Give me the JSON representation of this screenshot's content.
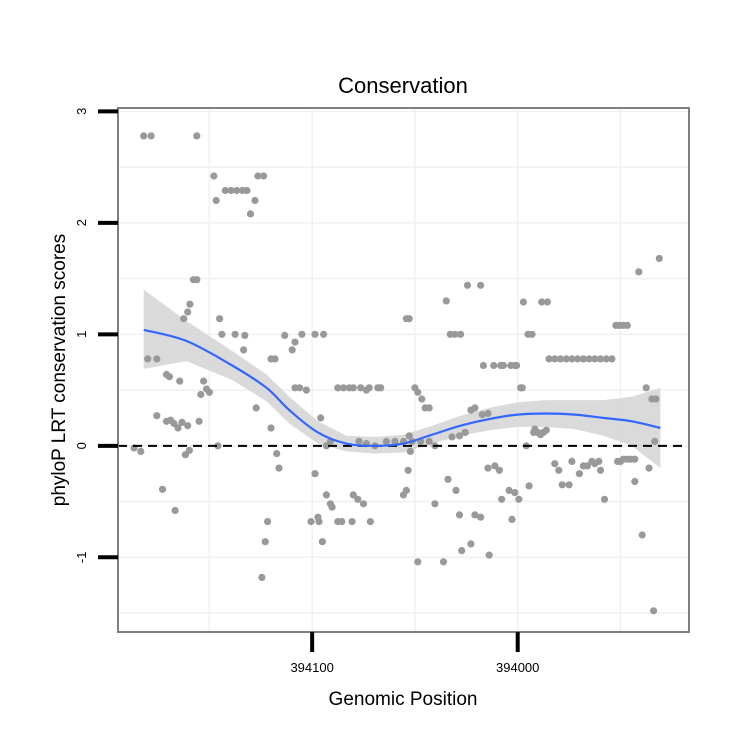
{
  "chart_data": {
    "type": "scatter",
    "title": "Conservation",
    "xlabel": "Genomic Position",
    "ylabel": "phyloP LRT conservation scores",
    "x_ticks": [
      {
        "label": "394100",
        "frac": 0.34
      },
      {
        "label": "394000",
        "frac": 0.7
      }
    ],
    "y_ticks": [
      -1,
      0,
      1,
      2,
      3
    ],
    "xlim": [
      0,
      1
    ],
    "ylim": [
      -1.67,
      3.03
    ],
    "reference_line": {
      "y": 0,
      "style": "dashed"
    },
    "grid": true,
    "colors": {
      "points": "#999999",
      "smooth": "#3366ff",
      "band": "#d6d6d6"
    },
    "points": [
      [
        0.045,
        2.78
      ],
      [
        0.058,
        2.78
      ],
      [
        0.138,
        2.78
      ],
      [
        0.168,
        2.42
      ],
      [
        0.172,
        2.2
      ],
      [
        0.188,
        2.29
      ],
      [
        0.198,
        2.29
      ],
      [
        0.208,
        2.29
      ],
      [
        0.218,
        2.29
      ],
      [
        0.226,
        2.29
      ],
      [
        0.232,
        2.08
      ],
      [
        0.24,
        2.2
      ],
      [
        0.245,
        2.42
      ],
      [
        0.255,
        2.42
      ],
      [
        0.132,
        1.49
      ],
      [
        0.138,
        1.49
      ],
      [
        0.126,
        1.27
      ],
      [
        0.122,
        1.2
      ],
      [
        0.115,
        1.14
      ],
      [
        0.178,
        1.14
      ],
      [
        0.182,
        1.0
      ],
      [
        0.205,
        1.0
      ],
      [
        0.22,
        0.86
      ],
      [
        0.222,
        0.99
      ],
      [
        0.052,
        0.78
      ],
      [
        0.068,
        0.78
      ],
      [
        0.085,
        0.64
      ],
      [
        0.09,
        0.62
      ],
      [
        0.108,
        0.58
      ],
      [
        0.15,
        0.58
      ],
      [
        0.155,
        0.51
      ],
      [
        0.16,
        0.48
      ],
      [
        0.145,
        0.46
      ],
      [
        0.142,
        0.22
      ],
      [
        0.068,
        0.27
      ],
      [
        0.085,
        0.22
      ],
      [
        0.092,
        0.23
      ],
      [
        0.098,
        0.2
      ],
      [
        0.112,
        0.21
      ],
      [
        0.122,
        0.18
      ],
      [
        0.105,
        0.16
      ],
      [
        0.028,
        -0.02
      ],
      [
        0.04,
        -0.05
      ],
      [
        0.118,
        -0.08
      ],
      [
        0.125,
        -0.04
      ],
      [
        0.175,
        0.0
      ],
      [
        0.078,
        -0.39
      ],
      [
        0.1,
        -0.58
      ],
      [
        0.242,
        0.34
      ],
      [
        0.268,
        0.16
      ],
      [
        0.278,
        -0.07
      ],
      [
        0.282,
        -0.2
      ],
      [
        0.262,
        -0.68
      ],
      [
        0.258,
        -0.86
      ],
      [
        0.252,
        -1.18
      ],
      [
        0.268,
        0.78
      ],
      [
        0.275,
        0.78
      ],
      [
        0.292,
        0.99
      ],
      [
        0.31,
        0.52
      ],
      [
        0.318,
        0.52
      ],
      [
        0.33,
        0.5
      ],
      [
        0.338,
        -0.68
      ],
      [
        0.35,
        -0.64
      ],
      [
        0.352,
        -0.68
      ],
      [
        0.305,
        0.86
      ],
      [
        0.31,
        0.93
      ],
      [
        0.322,
        1.0
      ],
      [
        0.345,
        1.0
      ],
      [
        0.36,
        1.0
      ],
      [
        0.345,
        -0.25
      ],
      [
        0.355,
        0.25
      ],
      [
        0.365,
        0.0
      ],
      [
        0.372,
        0.04
      ],
      [
        0.358,
        -0.86
      ],
      [
        0.365,
        -0.44
      ],
      [
        0.372,
        -0.52
      ],
      [
        0.375,
        -0.55
      ],
      [
        0.385,
        -0.68
      ],
      [
        0.392,
        -0.68
      ],
      [
        0.41,
        -0.68
      ],
      [
        0.385,
        0.52
      ],
      [
        0.395,
        0.52
      ],
      [
        0.405,
        0.52
      ],
      [
        0.412,
        0.52
      ],
      [
        0.425,
        0.52
      ],
      [
        0.435,
        0.5
      ],
      [
        0.44,
        0.52
      ],
      [
        0.455,
        0.52
      ],
      [
        0.46,
        0.52
      ],
      [
        0.412,
        -0.44
      ],
      [
        0.42,
        -0.48
      ],
      [
        0.43,
        -0.52
      ],
      [
        0.442,
        -0.68
      ],
      [
        0.422,
        0.04
      ],
      [
        0.435,
        0.02
      ],
      [
        0.45,
        0.0
      ],
      [
        0.47,
        0.04
      ],
      [
        0.485,
        0.04
      ],
      [
        0.5,
        0.04
      ],
      [
        0.515,
        0.04
      ],
      [
        0.53,
        0.04
      ],
      [
        0.545,
        0.04
      ],
      [
        0.555,
        0.0
      ],
      [
        0.505,
        1.14
      ],
      [
        0.51,
        1.14
      ],
      [
        0.52,
        0.52
      ],
      [
        0.525,
        0.48
      ],
      [
        0.532,
        0.42
      ],
      [
        0.538,
        0.34
      ],
      [
        0.545,
        0.34
      ],
      [
        0.51,
        0.09
      ],
      [
        0.512,
        -0.05
      ],
      [
        0.508,
        -0.22
      ],
      [
        0.505,
        -0.4
      ],
      [
        0.5,
        -0.44
      ],
      [
        0.525,
        -1.04
      ],
      [
        0.555,
        -0.52
      ],
      [
        0.57,
        -1.04
      ],
      [
        0.575,
        1.3
      ],
      [
        0.582,
        1.0
      ],
      [
        0.59,
        1.0
      ],
      [
        0.6,
        1.0
      ],
      [
        0.612,
        1.44
      ],
      [
        0.635,
        1.44
      ],
      [
        0.585,
        0.08
      ],
      [
        0.598,
        0.09
      ],
      [
        0.608,
        0.12
      ],
      [
        0.618,
        0.32
      ],
      [
        0.625,
        0.34
      ],
      [
        0.638,
        0.28
      ],
      [
        0.648,
        0.29
      ],
      [
        0.578,
        -0.3
      ],
      [
        0.592,
        -0.4
      ],
      [
        0.598,
        -0.62
      ],
      [
        0.602,
        -0.94
      ],
      [
        0.618,
        -0.88
      ],
      [
        0.625,
        -0.62
      ],
      [
        0.635,
        -0.64
      ],
      [
        0.65,
        -0.98
      ],
      [
        0.64,
        0.72
      ],
      [
        0.658,
        0.72
      ],
      [
        0.67,
        0.72
      ],
      [
        0.675,
        0.72
      ],
      [
        0.688,
        0.72
      ],
      [
        0.695,
        0.72
      ],
      [
        0.698,
        0.72
      ],
      [
        0.705,
        0.52
      ],
      [
        0.708,
        0.52
      ],
      [
        0.648,
        -0.2
      ],
      [
        0.66,
        -0.18
      ],
      [
        0.668,
        -0.22
      ],
      [
        0.672,
        -0.48
      ],
      [
        0.685,
        -0.4
      ],
      [
        0.69,
        -0.66
      ],
      [
        0.695,
        -0.42
      ],
      [
        0.702,
        -0.48
      ],
      [
        0.71,
        1.29
      ],
      [
        0.718,
        1.0
      ],
      [
        0.725,
        1.0
      ],
      [
        0.742,
        1.29
      ],
      [
        0.752,
        1.29
      ],
      [
        0.728,
        0.12
      ],
      [
        0.735,
        0.12
      ],
      [
        0.74,
        0.1
      ],
      [
        0.745,
        0.12
      ],
      [
        0.75,
        0.14
      ],
      [
        0.715,
        0.0
      ],
      [
        0.72,
        -0.36
      ],
      [
        0.73,
        0.15
      ],
      [
        0.755,
        0.78
      ],
      [
        0.765,
        0.78
      ],
      [
        0.775,
        0.78
      ],
      [
        0.785,
        0.78
      ],
      [
        0.795,
        0.78
      ],
      [
        0.805,
        0.78
      ],
      [
        0.815,
        0.78
      ],
      [
        0.825,
        0.78
      ],
      [
        0.835,
        0.78
      ],
      [
        0.845,
        0.78
      ],
      [
        0.855,
        0.78
      ],
      [
        0.865,
        0.78
      ],
      [
        0.765,
        -0.16
      ],
      [
        0.772,
        -0.22
      ],
      [
        0.778,
        -0.35
      ],
      [
        0.79,
        -0.35
      ],
      [
        0.795,
        -0.14
      ],
      [
        0.808,
        -0.25
      ],
      [
        0.815,
        -0.18
      ],
      [
        0.822,
        -0.18
      ],
      [
        0.83,
        -0.14
      ],
      [
        0.845,
        -0.22
      ],
      [
        0.835,
        -0.16
      ],
      [
        0.842,
        -0.14
      ],
      [
        0.852,
        -0.48
      ],
      [
        0.875,
        -0.14
      ],
      [
        0.88,
        -0.14
      ],
      [
        0.885,
        -0.12
      ],
      [
        0.892,
        -0.12
      ],
      [
        0.898,
        -0.12
      ],
      [
        0.905,
        -0.12
      ],
      [
        0.872,
        1.08
      ],
      [
        0.878,
        1.08
      ],
      [
        0.885,
        1.08
      ],
      [
        0.892,
        1.08
      ],
      [
        0.905,
        -0.32
      ],
      [
        0.912,
        1.56
      ],
      [
        0.918,
        -0.8
      ],
      [
        0.925,
        0.52
      ],
      [
        0.935,
        0.42
      ],
      [
        0.942,
        0.42
      ],
      [
        0.938,
        -1.48
      ],
      [
        0.948,
        1.68
      ],
      [
        0.94,
        0.04
      ],
      [
        0.93,
        -0.2
      ]
    ],
    "smooth": [
      [
        0.045,
        1.04
      ],
      [
        0.12,
        0.94
      ],
      [
        0.2,
        0.72
      ],
      [
        0.26,
        0.52
      ],
      [
        0.3,
        0.32
      ],
      [
        0.35,
        0.12
      ],
      [
        0.4,
        0.02
      ],
      [
        0.45,
        0.0
      ],
      [
        0.5,
        0.02
      ],
      [
        0.55,
        0.1
      ],
      [
        0.6,
        0.18
      ],
      [
        0.65,
        0.24
      ],
      [
        0.7,
        0.28
      ],
      [
        0.75,
        0.29
      ],
      [
        0.8,
        0.28
      ],
      [
        0.85,
        0.25
      ],
      [
        0.9,
        0.22
      ],
      [
        0.95,
        0.16
      ]
    ],
    "band_upper": [
      [
        0.045,
        1.4
      ],
      [
        0.12,
        1.12
      ],
      [
        0.2,
        0.85
      ],
      [
        0.26,
        0.64
      ],
      [
        0.3,
        0.44
      ],
      [
        0.35,
        0.22
      ],
      [
        0.4,
        0.09
      ],
      [
        0.45,
        0.08
      ],
      [
        0.5,
        0.1
      ],
      [
        0.55,
        0.18
      ],
      [
        0.6,
        0.27
      ],
      [
        0.65,
        0.34
      ],
      [
        0.7,
        0.39
      ],
      [
        0.75,
        0.41
      ],
      [
        0.8,
        0.41
      ],
      [
        0.85,
        0.41
      ],
      [
        0.9,
        0.44
      ],
      [
        0.95,
        0.52
      ]
    ],
    "band_lower": [
      [
        0.045,
        0.69
      ],
      [
        0.12,
        0.76
      ],
      [
        0.2,
        0.59
      ],
      [
        0.26,
        0.4
      ],
      [
        0.3,
        0.2
      ],
      [
        0.35,
        0.02
      ],
      [
        0.4,
        -0.05
      ],
      [
        0.45,
        -0.07
      ],
      [
        0.5,
        -0.06
      ],
      [
        0.55,
        0.02
      ],
      [
        0.6,
        0.09
      ],
      [
        0.65,
        0.14
      ],
      [
        0.7,
        0.17
      ],
      [
        0.75,
        0.17
      ],
      [
        0.8,
        0.15
      ],
      [
        0.85,
        0.09
      ],
      [
        0.9,
        0.0
      ],
      [
        0.95,
        -0.2
      ]
    ]
  }
}
